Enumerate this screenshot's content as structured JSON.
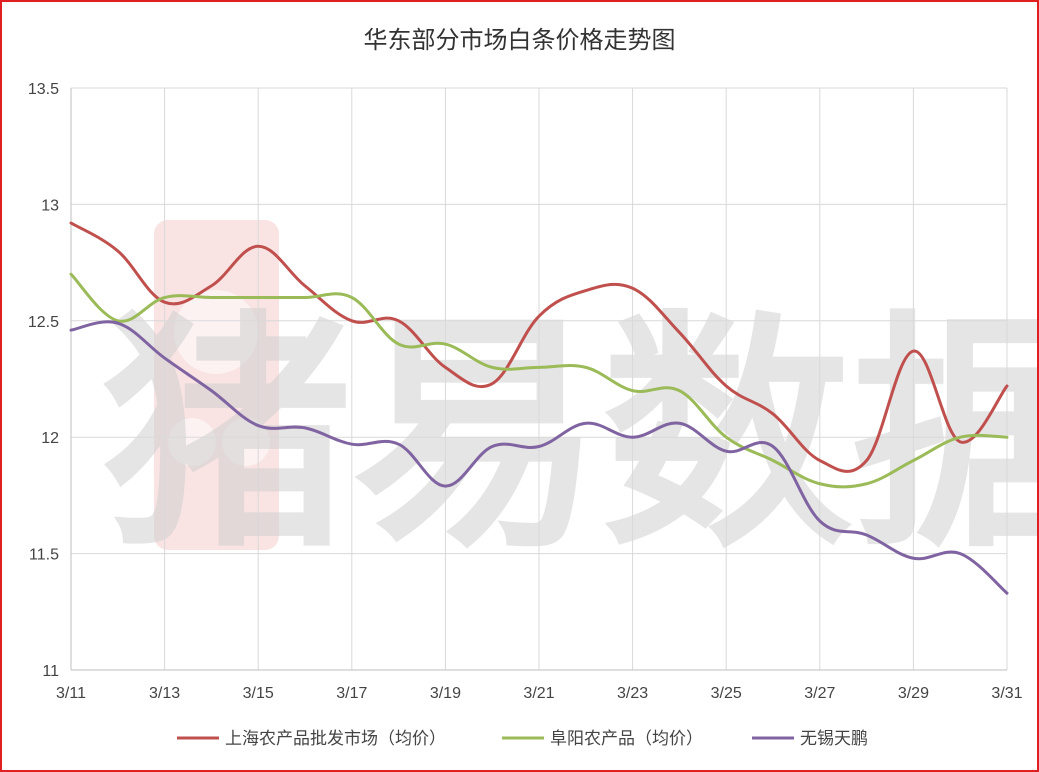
{
  "chart_data": {
    "type": "line",
    "title": "华东部分市场白条价格走势图",
    "xlabel": "",
    "ylabel": "",
    "ylim": [
      11,
      13.5
    ],
    "yticks": [
      "11",
      "11.5",
      "12",
      "12.5",
      "13",
      "13.5"
    ],
    "xticks": [
      "3/11",
      "3/13",
      "3/15",
      "3/17",
      "3/19",
      "3/21",
      "3/23",
      "3/25",
      "3/27",
      "3/29",
      "3/31"
    ],
    "x": [
      "3/11",
      "3/12",
      "3/13",
      "3/14",
      "3/15",
      "3/16",
      "3/17",
      "3/18",
      "3/19",
      "3/20",
      "3/21",
      "3/22",
      "3/23",
      "3/24",
      "3/25",
      "3/26",
      "3/27",
      "3/28",
      "3/29",
      "3/30",
      "3/31"
    ],
    "grid": true,
    "legend_position": "bottom",
    "watermark": "猪易数据",
    "series": [
      {
        "name": "上海农产品批发市场（均价）",
        "color": "#c0504d",
        "values": [
          12.92,
          12.8,
          12.58,
          12.65,
          12.82,
          12.65,
          12.5,
          12.5,
          12.3,
          12.23,
          12.52,
          12.63,
          12.64,
          12.45,
          12.22,
          12.1,
          11.9,
          11.9,
          12.37,
          11.98,
          12.22
        ]
      },
      {
        "name": "阜阳农产品（均价）",
        "color": "#9bbb59",
        "values": [
          12.7,
          12.5,
          12.6,
          12.6,
          12.6,
          12.6,
          12.6,
          12.4,
          12.4,
          12.3,
          12.3,
          12.3,
          12.2,
          12.2,
          12.0,
          11.9,
          11.8,
          11.8,
          11.9,
          12.0,
          12.0
        ]
      },
      {
        "name": "无锡天鹏",
        "color": "#8064a2",
        "values": [
          12.46,
          12.49,
          12.34,
          12.2,
          12.05,
          12.04,
          11.97,
          11.97,
          11.79,
          11.96,
          11.96,
          12.06,
          12.0,
          12.06,
          11.94,
          11.96,
          11.64,
          11.58,
          11.48,
          11.5,
          11.33
        ]
      }
    ]
  }
}
